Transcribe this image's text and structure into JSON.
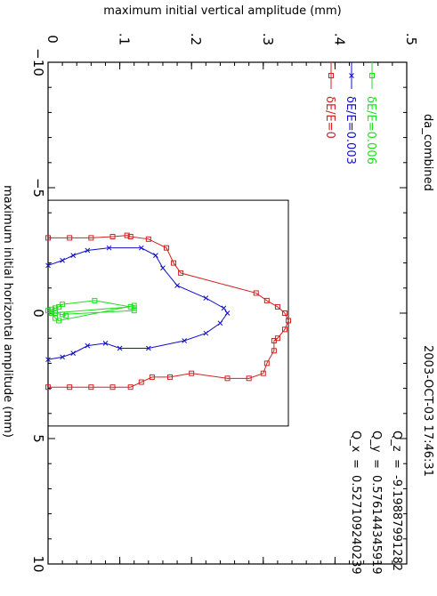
{
  "chart_data": {
    "type": "line",
    "title": "da_combined",
    "timestamp": "2003-OCT-03 17:46:31",
    "xlabel": "maximum initial horizontal amplitude (mm)",
    "ylabel": "maximum initial vertical amplitude (mm)",
    "xlim": [
      -10,
      10
    ],
    "ylim": [
      0,
      0.5
    ],
    "xticks": [
      "-10",
      "-5",
      "0",
      "5",
      "10"
    ],
    "yticks": [
      "0",
      ".1",
      ".2",
      ".3",
      ".4",
      ".5"
    ],
    "grid": false,
    "legend_position": "top-right",
    "q_values": [
      {
        "label": "Q_x",
        "eq": "=",
        "value": "0.527109240239"
      },
      {
        "label": "Q_y",
        "eq": "=",
        "value": "0.576144345919"
      },
      {
        "label": "Q_z",
        "eq": "=",
        "value": "-9.19887991282"
      }
    ],
    "aperture": {
      "x": [
        -4.5,
        4.5
      ],
      "y": [
        0,
        0.335
      ]
    },
    "series": [
      {
        "name": "δE/E=0",
        "color": "#d42020",
        "marker": "square",
        "points": [
          [
            -3.0,
            0.0
          ],
          [
            -3.0,
            0.03
          ],
          [
            -3.0,
            0.06
          ],
          [
            -3.05,
            0.09
          ],
          [
            -3.1,
            0.11
          ],
          [
            -3.05,
            0.115
          ],
          [
            -2.95,
            0.14
          ],
          [
            -2.6,
            0.165
          ],
          [
            -2.0,
            0.175
          ],
          [
            -1.6,
            0.185
          ],
          [
            -0.8,
            0.29
          ],
          [
            -0.5,
            0.305
          ],
          [
            -0.25,
            0.32
          ],
          [
            0.0,
            0.33
          ],
          [
            0.3,
            0.335
          ],
          [
            0.65,
            0.33
          ],
          [
            1.0,
            0.32
          ],
          [
            1.1,
            0.315
          ],
          [
            1.5,
            0.315
          ],
          [
            2.0,
            0.305
          ],
          [
            2.4,
            0.3
          ],
          [
            2.6,
            0.28
          ],
          [
            2.6,
            0.25
          ],
          [
            2.4,
            0.2
          ],
          [
            2.55,
            0.17
          ],
          [
            2.55,
            0.145
          ],
          [
            2.75,
            0.13
          ],
          [
            2.95,
            0.115
          ],
          [
            2.95,
            0.09
          ],
          [
            2.95,
            0.06
          ],
          [
            2.95,
            0.03
          ],
          [
            2.95,
            0.0
          ]
        ]
      },
      {
        "name": "δE/E=0.003",
        "color": "#1010c8",
        "marker": "x",
        "points": [
          [
            -1.9,
            0.0
          ],
          [
            -2.1,
            0.02
          ],
          [
            -2.3,
            0.035
          ],
          [
            -2.5,
            0.055
          ],
          [
            -2.6,
            0.085
          ],
          [
            -2.6,
            0.13
          ],
          [
            -2.3,
            0.15
          ],
          [
            -1.8,
            0.16
          ],
          [
            -1.1,
            0.18
          ],
          [
            -0.6,
            0.22
          ],
          [
            -0.2,
            0.245
          ],
          [
            0.0,
            0.25
          ],
          [
            0.4,
            0.24
          ],
          [
            0.8,
            0.22
          ],
          [
            1.1,
            0.19
          ],
          [
            1.4,
            0.14
          ],
          [
            1.4,
            0.1
          ],
          [
            1.2,
            0.08
          ],
          [
            1.3,
            0.055
          ],
          [
            1.6,
            0.035
          ],
          [
            1.75,
            0.02
          ],
          [
            1.85,
            0.0
          ]
        ]
      },
      {
        "name": "δE/E=0.006",
        "color": "#22dd22",
        "marker": "square",
        "points": [
          [
            -0.1,
            0.0
          ],
          [
            -0.15,
            0.005
          ],
          [
            -0.2,
            0.01
          ],
          [
            -0.25,
            0.015
          ],
          [
            -0.35,
            0.02
          ],
          [
            -0.5,
            0.065
          ],
          [
            -0.25,
            0.115
          ],
          [
            0.0,
            0.005
          ],
          [
            0.2,
            0.01
          ],
          [
            0.3,
            0.015
          ],
          [
            -0.3,
            0.12
          ],
          [
            -0.2,
            0.12
          ],
          [
            -0.1,
            0.12
          ],
          [
            0.05,
            0.02
          ],
          [
            0.1,
            0.025
          ],
          [
            0.0,
            0.01
          ],
          [
            -0.05,
            0.005
          ]
        ]
      }
    ]
  }
}
